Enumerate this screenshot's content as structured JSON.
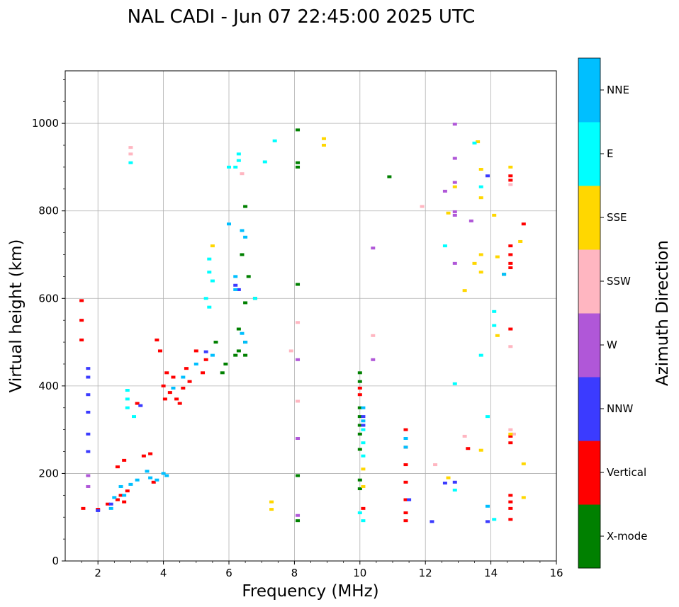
{
  "chart_data": {
    "type": "scatter",
    "title": "NAL CADI - Jun 07 22:45:00 2025 UTC",
    "xlabel": "Frequency (MHz)",
    "ylabel": "Virtual height (km)",
    "xlim": [
      1,
      16
    ],
    "ylim": [
      0,
      1120
    ],
    "xticks": [
      "2",
      "4",
      "6",
      "8",
      "10",
      "12",
      "14",
      "16"
    ],
    "yticks": [
      "0",
      "200",
      "400",
      "600",
      "800",
      "1000"
    ],
    "grid": true,
    "colorbar": {
      "label": "Azimuth Direction",
      "categories": [
        "X-mode",
        "Vertical",
        "NNW",
        "W",
        "SSW",
        "SSE",
        "E",
        "NNE"
      ],
      "colors": [
        "#008000",
        "#ff0000",
        "#3b3bff",
        "#b057d8",
        "#ffb6c1",
        "#ffd700",
        "#00ffff",
        "#00bfff"
      ]
    },
    "series": [
      {
        "name": "Vertical",
        "points": [
          [
            1.5,
            595
          ],
          [
            1.5,
            550
          ],
          [
            1.5,
            505
          ],
          [
            1.55,
            120
          ],
          [
            2.0,
            118
          ],
          [
            2.3,
            130
          ],
          [
            2.6,
            140
          ],
          [
            2.7,
            150
          ],
          [
            2.8,
            135
          ],
          [
            2.9,
            160
          ],
          [
            2.6,
            215
          ],
          [
            2.8,
            230
          ],
          [
            3.2,
            360
          ],
          [
            3.4,
            240
          ],
          [
            3.6,
            245
          ],
          [
            3.7,
            180
          ],
          [
            3.8,
            505
          ],
          [
            3.9,
            480
          ],
          [
            4.0,
            400
          ],
          [
            4.05,
            370
          ],
          [
            4.1,
            430
          ],
          [
            4.2,
            385
          ],
          [
            4.3,
            420
          ],
          [
            4.4,
            370
          ],
          [
            4.5,
            360
          ],
          [
            4.6,
            395
          ],
          [
            4.7,
            440
          ],
          [
            4.8,
            410
          ],
          [
            5.0,
            480
          ],
          [
            5.2,
            430
          ],
          [
            5.3,
            460
          ],
          [
            10.0,
            395
          ],
          [
            10.0,
            380
          ],
          [
            10.1,
            120
          ],
          [
            11.4,
            300
          ],
          [
            11.4,
            260
          ],
          [
            11.4,
            220
          ],
          [
            11.4,
            180
          ],
          [
            11.4,
            140
          ],
          [
            11.4,
            110
          ],
          [
            11.4,
            92
          ],
          [
            14.6,
            880
          ],
          [
            14.6,
            870
          ],
          [
            14.6,
            720
          ],
          [
            14.6,
            700
          ],
          [
            14.6,
            680
          ],
          [
            14.6,
            670
          ],
          [
            14.6,
            530
          ],
          [
            14.6,
            285
          ],
          [
            14.6,
            270
          ],
          [
            14.6,
            150
          ],
          [
            14.6,
            135
          ],
          [
            14.6,
            120
          ],
          [
            14.6,
            95
          ],
          [
            15.0,
            770
          ],
          [
            13.3,
            257
          ]
        ]
      },
      {
        "name": "X-mode",
        "points": [
          [
            6.2,
            470
          ],
          [
            6.3,
            480
          ],
          [
            6.5,
            500
          ],
          [
            6.5,
            470
          ],
          [
            6.5,
            590
          ],
          [
            6.6,
            650
          ],
          [
            6.8,
            600
          ],
          [
            5.8,
            430
          ],
          [
            5.6,
            500
          ],
          [
            6.4,
            700
          ],
          [
            8.1,
            985
          ],
          [
            8.1,
            910
          ],
          [
            8.1,
            900
          ],
          [
            8.1,
            632
          ],
          [
            8.1,
            195
          ],
          [
            8.1,
            92
          ],
          [
            10.0,
            430
          ],
          [
            10.0,
            410
          ],
          [
            10.0,
            350
          ],
          [
            10.0,
            330
          ],
          [
            10.0,
            310
          ],
          [
            10.0,
            290
          ],
          [
            10.0,
            255
          ],
          [
            10.0,
            185
          ],
          [
            10.0,
            165
          ],
          [
            10.9,
            878
          ],
          [
            14.4,
            655
          ],
          [
            6.5,
            810
          ],
          [
            6.3,
            530
          ],
          [
            5.9,
            450
          ]
        ]
      },
      {
        "name": "NNW",
        "points": [
          [
            1.7,
            440
          ],
          [
            1.7,
            420
          ],
          [
            1.7,
            380
          ],
          [
            1.7,
            340
          ],
          [
            1.7,
            290
          ],
          [
            1.7,
            250
          ],
          [
            2.0,
            115
          ],
          [
            2.4,
            130
          ],
          [
            3.3,
            355
          ],
          [
            5.3,
            478
          ],
          [
            6.2,
            630
          ],
          [
            6.3,
            620
          ],
          [
            10.1,
            330
          ],
          [
            10.1,
            310
          ],
          [
            11.5,
            140
          ],
          [
            12.2,
            90
          ],
          [
            12.6,
            178
          ],
          [
            12.9,
            180
          ],
          [
            13.9,
            90
          ],
          [
            13.9,
            880
          ]
        ]
      },
      {
        "name": "W",
        "points": [
          [
            1.7,
            195
          ],
          [
            1.7,
            170
          ],
          [
            8.1,
            460
          ],
          [
            8.1,
            280
          ],
          [
            8.1,
            104
          ],
          [
            10.4,
            715
          ],
          [
            10.4,
            460
          ],
          [
            12.6,
            845
          ],
          [
            12.9,
            998
          ],
          [
            12.9,
            920
          ],
          [
            12.9,
            865
          ],
          [
            12.9,
            798
          ],
          [
            12.9,
            790
          ],
          [
            12.9,
            680
          ],
          [
            13.4,
            777
          ]
        ]
      },
      {
        "name": "SSW",
        "points": [
          [
            3.0,
            945
          ],
          [
            3.0,
            930
          ],
          [
            6.4,
            885
          ],
          [
            7.9,
            480
          ],
          [
            8.1,
            545
          ],
          [
            8.1,
            365
          ],
          [
            10.4,
            515
          ],
          [
            11.9,
            810
          ],
          [
            12.3,
            220
          ],
          [
            13.2,
            285
          ],
          [
            14.6,
            490
          ],
          [
            14.6,
            860
          ],
          [
            14.6,
            300
          ],
          [
            14.7,
            290
          ]
        ]
      },
      {
        "name": "SSE",
        "points": [
          [
            5.5,
            720
          ],
          [
            7.3,
            135
          ],
          [
            7.3,
            118
          ],
          [
            8.9,
            965
          ],
          [
            8.9,
            950
          ],
          [
            10.1,
            210
          ],
          [
            10.1,
            170
          ],
          [
            12.7,
            795
          ],
          [
            12.7,
            190
          ],
          [
            12.9,
            855
          ],
          [
            13.2,
            618
          ],
          [
            13.5,
            680
          ],
          [
            13.6,
            958
          ],
          [
            13.7,
            895
          ],
          [
            13.7,
            830
          ],
          [
            13.7,
            700
          ],
          [
            13.7,
            660
          ],
          [
            13.7,
            253
          ],
          [
            14.1,
            790
          ],
          [
            14.2,
            695
          ],
          [
            14.2,
            515
          ],
          [
            14.6,
            900
          ],
          [
            14.6,
            290
          ],
          [
            14.9,
            730
          ],
          [
            15.0,
            145
          ],
          [
            15.0,
            222
          ]
        ]
      },
      {
        "name": "E",
        "points": [
          [
            3.0,
            910
          ],
          [
            2.9,
            390
          ],
          [
            2.9,
            370
          ],
          [
            2.9,
            350
          ],
          [
            3.1,
            330
          ],
          [
            5.4,
            690
          ],
          [
            5.4,
            660
          ],
          [
            5.5,
            640
          ],
          [
            5.3,
            600
          ],
          [
            5.4,
            580
          ],
          [
            6.0,
            900
          ],
          [
            6.2,
            900
          ],
          [
            6.3,
            930
          ],
          [
            6.3,
            915
          ],
          [
            6.8,
            600
          ],
          [
            7.1,
            912
          ],
          [
            7.4,
            960
          ],
          [
            10.1,
            300
          ],
          [
            10.1,
            270
          ],
          [
            10.1,
            240
          ],
          [
            10.1,
            92
          ],
          [
            10.0,
            110
          ],
          [
            12.6,
            720
          ],
          [
            12.9,
            405
          ],
          [
            12.9,
            162
          ],
          [
            13.5,
            955
          ],
          [
            13.7,
            855
          ],
          [
            13.7,
            470
          ],
          [
            13.9,
            330
          ],
          [
            14.1,
            570
          ],
          [
            14.1,
            538
          ],
          [
            14.1,
            95
          ]
        ]
      },
      {
        "name": "NNE",
        "points": [
          [
            2.4,
            120
          ],
          [
            2.5,
            145
          ],
          [
            2.7,
            170
          ],
          [
            2.8,
            150
          ],
          [
            3.0,
            175
          ],
          [
            3.2,
            185
          ],
          [
            3.5,
            205
          ],
          [
            3.6,
            190
          ],
          [
            3.8,
            185
          ],
          [
            4.0,
            200
          ],
          [
            4.1,
            195
          ],
          [
            4.3,
            395
          ],
          [
            4.6,
            420
          ],
          [
            5.0,
            450
          ],
          [
            5.5,
            470
          ],
          [
            6.0,
            770
          ],
          [
            6.4,
            755
          ],
          [
            6.5,
            740
          ],
          [
            6.2,
            650
          ],
          [
            6.2,
            620
          ],
          [
            6.4,
            520
          ],
          [
            6.5,
            500
          ],
          [
            10.1,
            350
          ],
          [
            10.1,
            320
          ],
          [
            11.4,
            280
          ],
          [
            11.4,
            260
          ],
          [
            13.9,
            125
          ],
          [
            14.4,
            655
          ]
        ]
      }
    ]
  }
}
